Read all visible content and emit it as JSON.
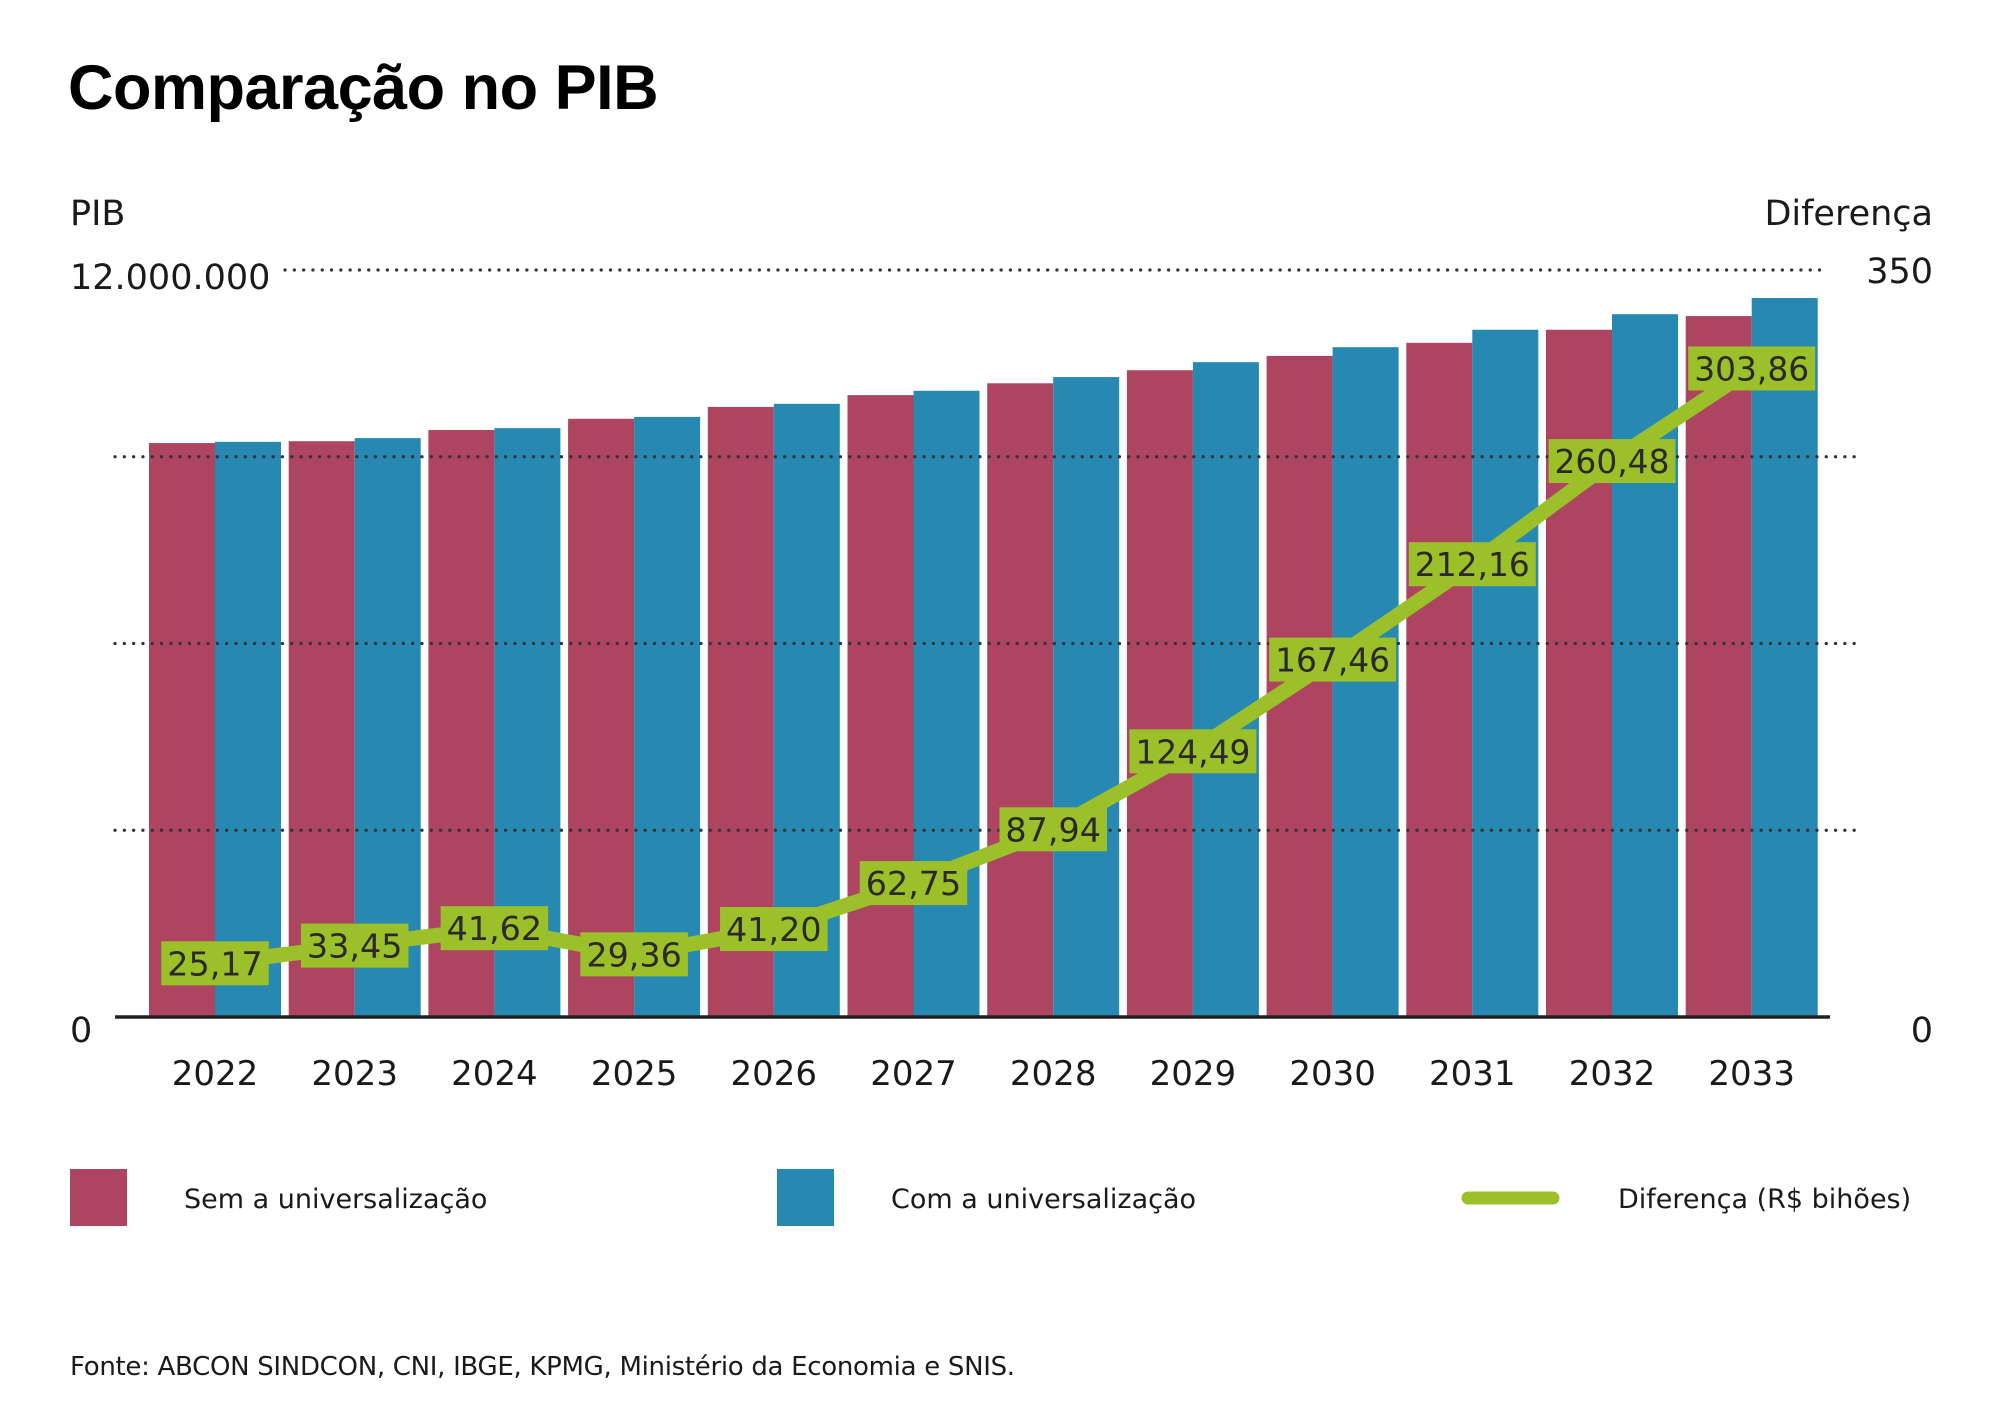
{
  "title": "Comparação no PIB",
  "source": "Fonte: ABCON SINDCON, CNI, IBGE, KPMG, Ministério da Economia e SNIS.",
  "colors": {
    "sem": "#ad4561",
    "com": "#2789b1",
    "diferenca": "#9cc02a",
    "axis": "#222222",
    "grid": "#333333"
  },
  "chart_data": {
    "type": "bar",
    "title": "Comparação no PIB",
    "xlabel": "",
    "ylabel": "PIB",
    "y2label": "Diferença",
    "ylim": [
      0,
      12000000
    ],
    "y2lim": [
      0,
      350
    ],
    "y_tick_labels": [
      "0",
      "12.000.000"
    ],
    "y2_tick_labels": [
      "0",
      "350"
    ],
    "gridlines": [
      0,
      3000000,
      6000000,
      9000000,
      12000000
    ],
    "grid": true,
    "legend_position": "bottom",
    "categories": [
      "2022",
      "2023",
      "2024",
      "2025",
      "2026",
      "2027",
      "2028",
      "2029",
      "2030",
      "2031",
      "2032",
      "2033"
    ],
    "series": [
      {
        "name": "Sem a universalização",
        "type": "bar",
        "axis": "left",
        "values": [
          9220000,
          9250000,
          9430000,
          9610000,
          9800000,
          9990000,
          10180000,
          10390000,
          10620000,
          10830000,
          11040000,
          11260000
        ]
      },
      {
        "name": "Com a universalização",
        "type": "bar",
        "axis": "left",
        "values": [
          9240000,
          9300000,
          9460000,
          9640000,
          9850000,
          10060000,
          10280000,
          10520000,
          10760000,
          11040000,
          11290000,
          11550000
        ]
      },
      {
        "name": "Diferença (R$ bihões)",
        "type": "line",
        "axis": "right",
        "values": [
          25.17,
          33.45,
          41.62,
          29.36,
          41.2,
          62.75,
          87.94,
          124.49,
          167.46,
          212.16,
          260.48,
          303.86
        ],
        "labels": [
          "25,17",
          "33,45",
          "41,62",
          "29,36",
          "41,20",
          "62,75",
          "87,94",
          "124,49",
          "167,46",
          "212,16",
          "260,48",
          "303,86"
        ]
      }
    ]
  },
  "legend": [
    {
      "label": "Sem a universalização",
      "kind": "swatch",
      "color_key": "sem"
    },
    {
      "label": "Com a universalização",
      "kind": "swatch",
      "color_key": "com"
    },
    {
      "label": "Diferença (R$ bihões)",
      "kind": "line",
      "color_key": "diferenca"
    }
  ]
}
